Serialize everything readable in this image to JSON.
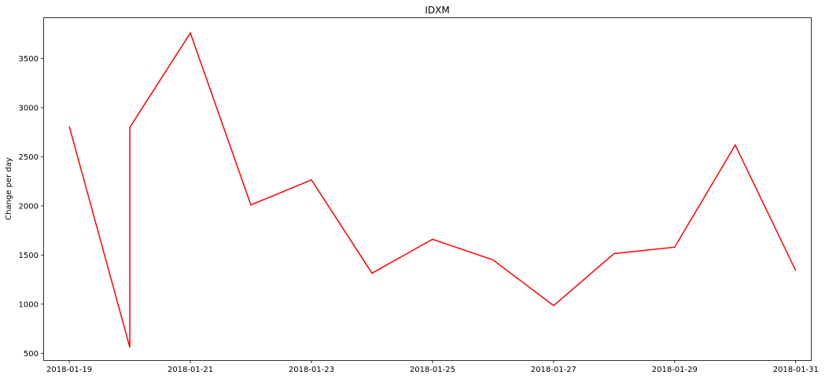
{
  "chart_data": {
    "type": "line",
    "title": "IDXM",
    "xlabel": "",
    "ylabel": "Change per day",
    "x_ticks": [
      "2018-01-19",
      "2018-01-21",
      "2018-01-23",
      "2018-01-25",
      "2018-01-27",
      "2018-01-29",
      "2018-01-31"
    ],
    "y_ticks": [
      500,
      1000,
      1500,
      2000,
      2500,
      3000,
      3500
    ],
    "xlim": [
      "2018-01-18T14:00",
      "2018-01-31T06:00"
    ],
    "ylim": [
      430,
      3920
    ],
    "grid": false,
    "series": [
      {
        "color": "#ff0000",
        "points": [
          {
            "x": "2018-01-19T00:00",
            "y": 2810
          },
          {
            "x": "2018-01-20T00:00",
            "y": 560
          },
          {
            "x": "2018-01-20T00:00",
            "y": 2800
          },
          {
            "x": "2018-01-21T00:00",
            "y": 3760
          },
          {
            "x": "2018-01-22T00:00",
            "y": 2010
          },
          {
            "x": "2018-01-23T00:00",
            "y": 2265
          },
          {
            "x": "2018-01-24T00:00",
            "y": 1315
          },
          {
            "x": "2018-01-25T00:00",
            "y": 1660
          },
          {
            "x": "2018-01-26T00:00",
            "y": 1450
          },
          {
            "x": "2018-01-27T00:00",
            "y": 985
          },
          {
            "x": "2018-01-28T00:00",
            "y": 1515
          },
          {
            "x": "2018-01-29T00:00",
            "y": 1580
          },
          {
            "x": "2018-01-30T00:00",
            "y": 2620
          },
          {
            "x": "2018-01-31T00:00",
            "y": 1340
          }
        ]
      }
    ]
  }
}
